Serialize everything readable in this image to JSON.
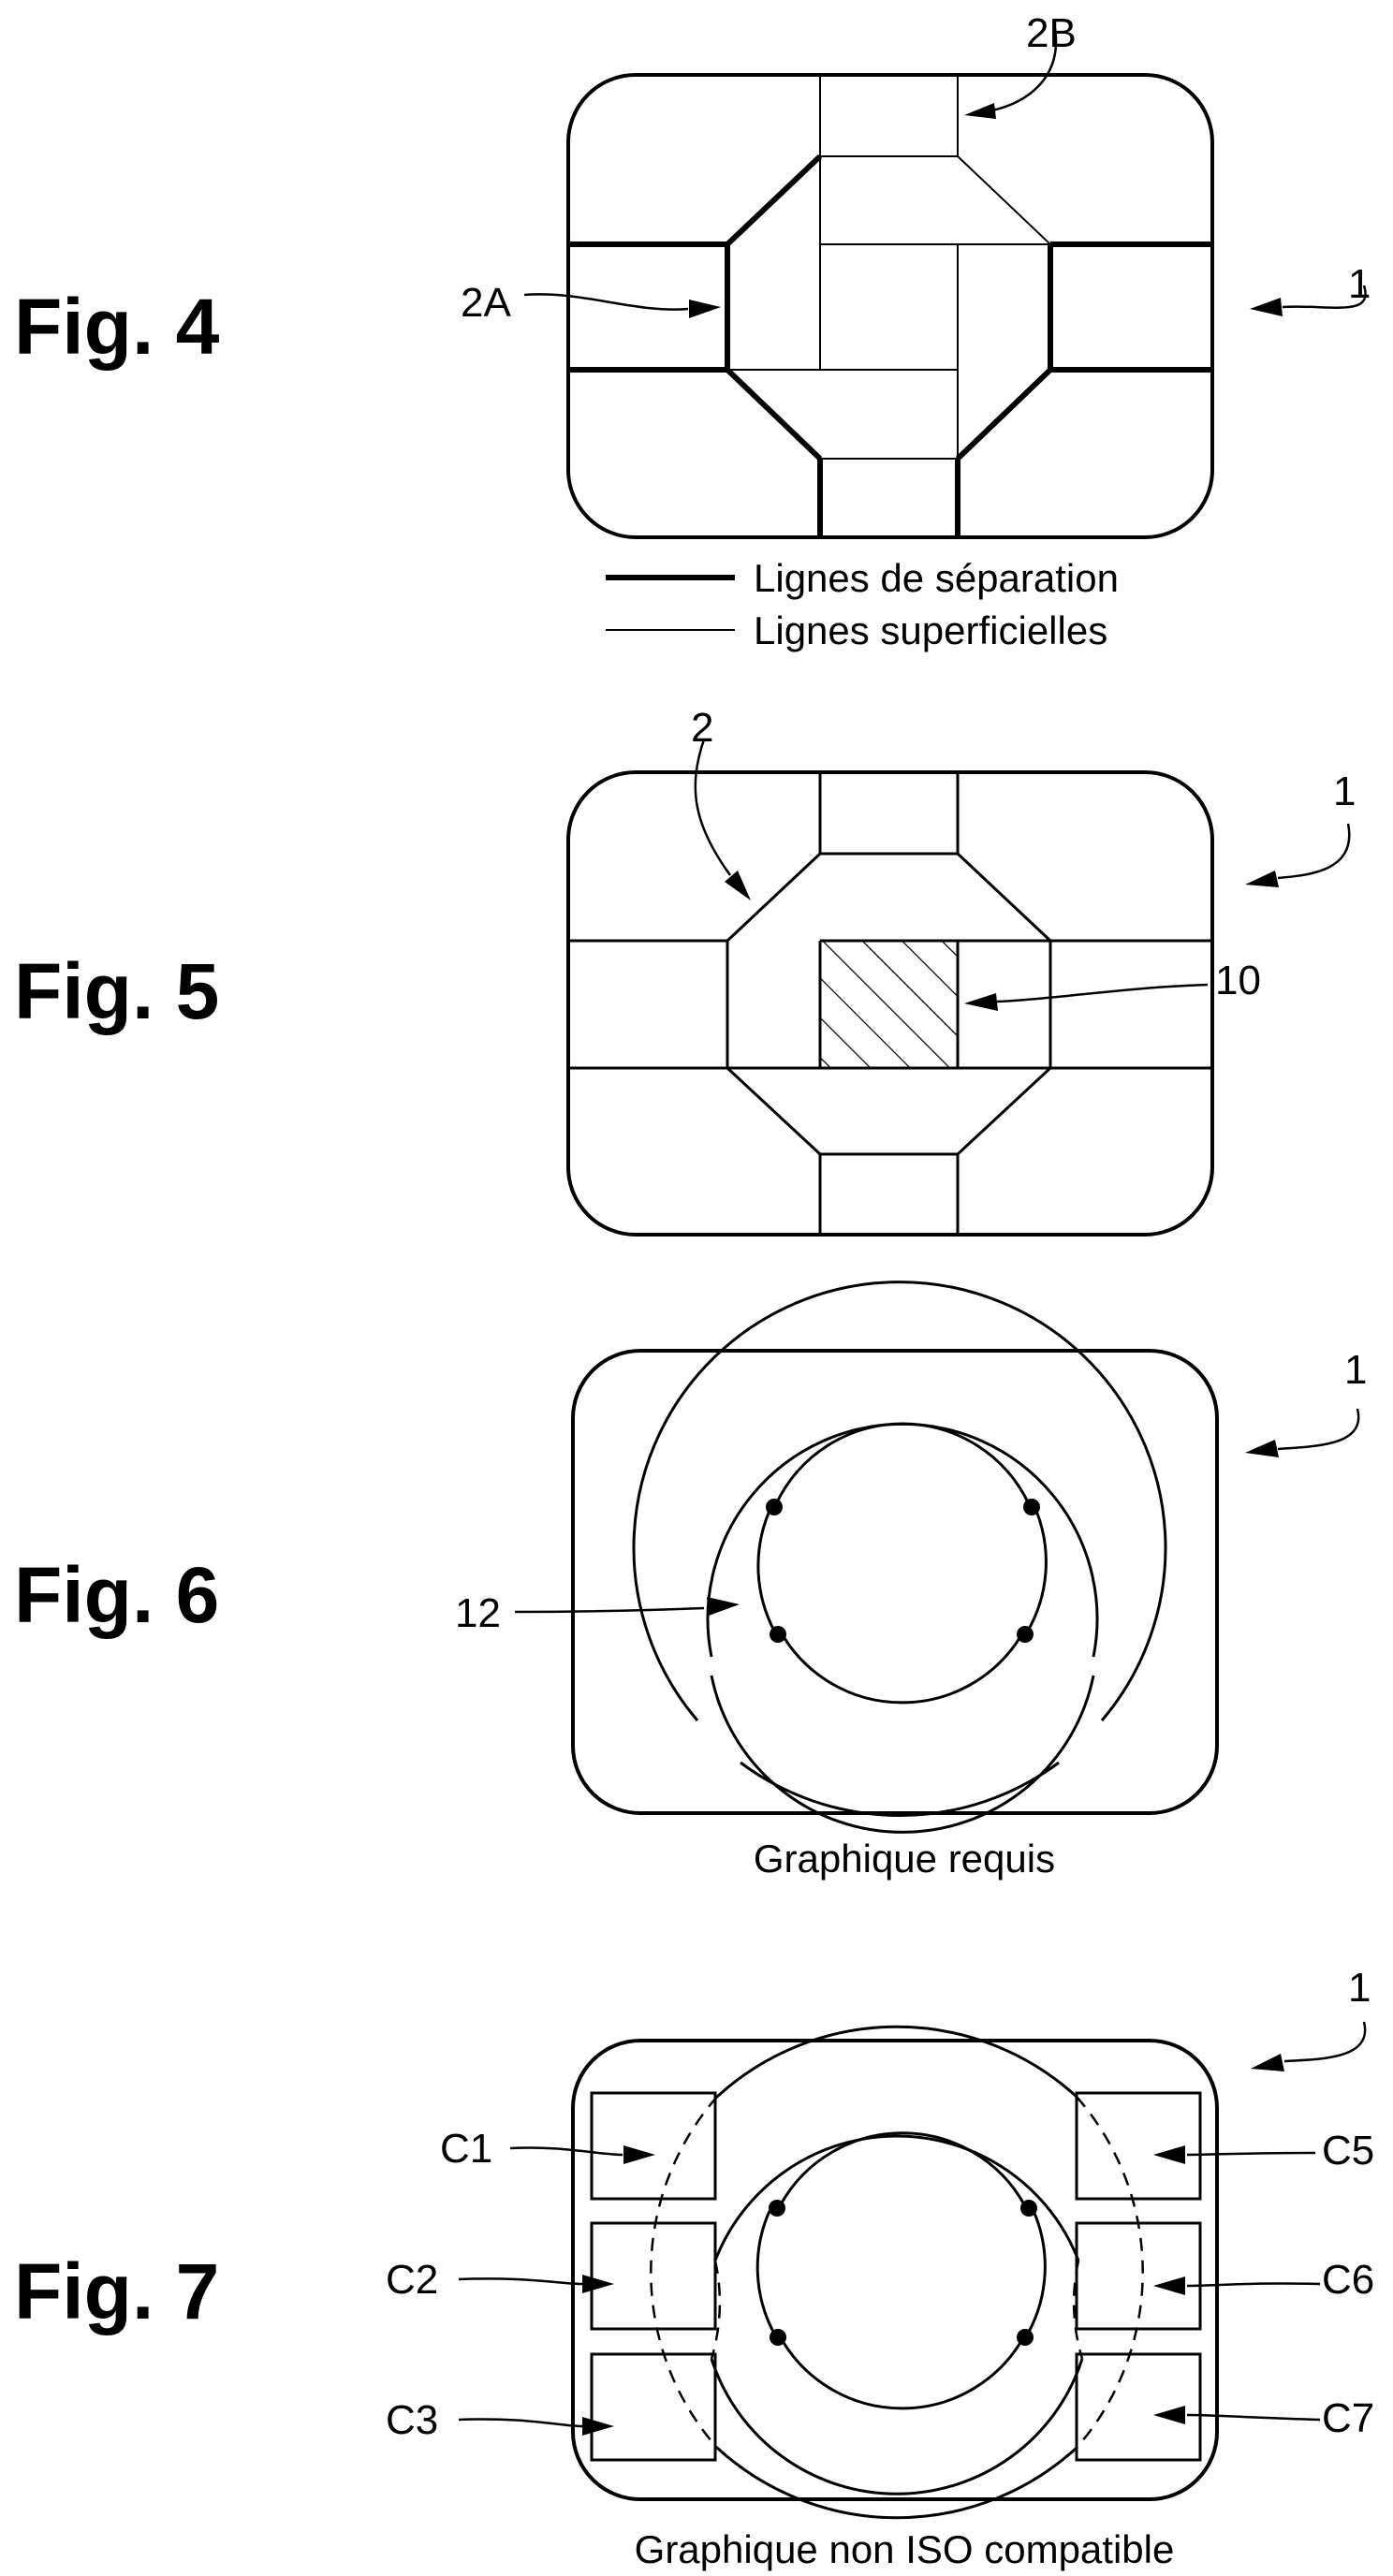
{
  "figures": {
    "fig4": {
      "label": "Fig. 4",
      "refs": {
        "r2a": "2A",
        "r2b": "2B",
        "r1": "1"
      },
      "legend": {
        "separation": "Lignes de séparation",
        "surface": "Lignes superficielles"
      }
    },
    "fig5": {
      "label": "Fig. 5",
      "refs": {
        "r2": "2",
        "r1": "1",
        "r10": "10"
      }
    },
    "fig6": {
      "label": "Fig. 6",
      "refs": {
        "r1": "1",
        "r12": "12"
      },
      "caption": "Graphique requis"
    },
    "fig7": {
      "label": "Fig. 7",
      "refs": {
        "r1": "1",
        "c1": "C1",
        "c2": "C2",
        "c3": "C3",
        "c5": "C5",
        "c6": "C6",
        "c7": "C7"
      },
      "caption": "Graphique non ISO compatible"
    }
  }
}
